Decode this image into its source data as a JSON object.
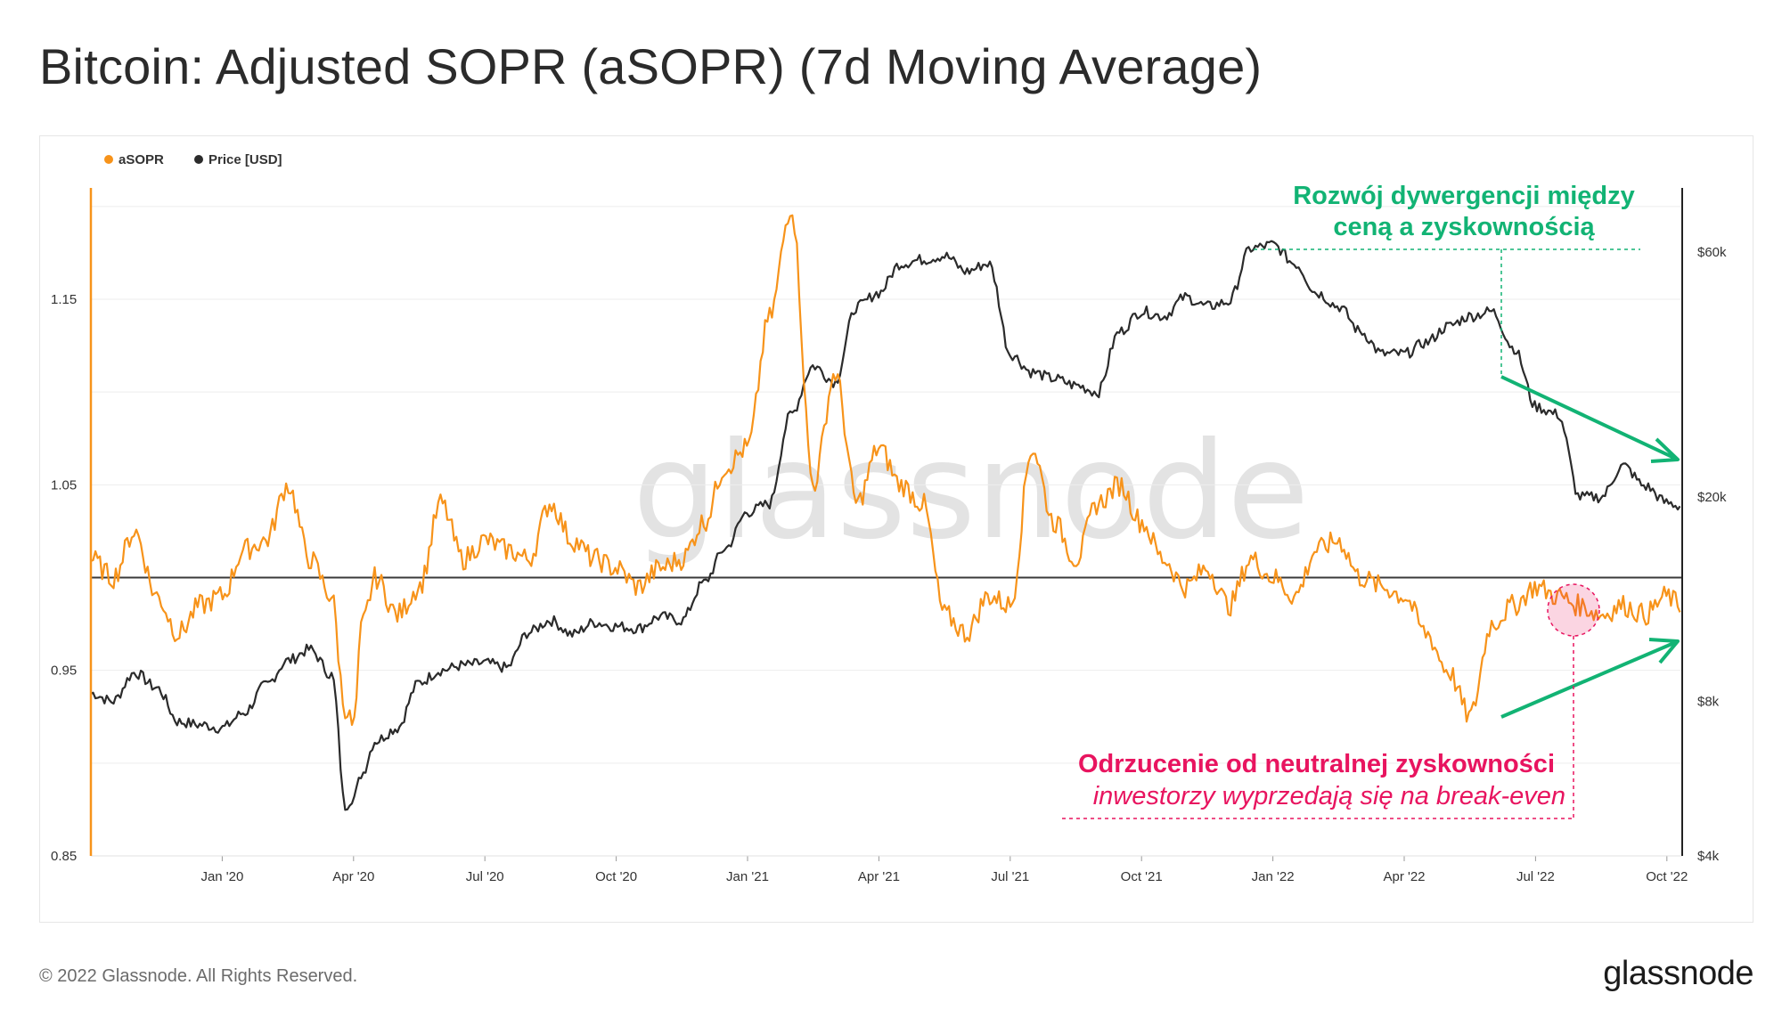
{
  "page": {
    "title": "Bitcoin: Adjusted SOPR (aSOPR) (7d Moving Average)",
    "copyright": "© 2022 Glassnode. All Rights Reserved.",
    "logo_text": "glassnode",
    "watermark": "glassnode"
  },
  "colors": {
    "asopr": "#f7931a",
    "price": "#2b2b2b",
    "green": "#12b374",
    "red": "#e8145f",
    "grid": "#ececec"
  },
  "chart_data": {
    "type": "line",
    "title": "Bitcoin: Adjusted SOPR (aSOPR) (7d Moving Average)",
    "legend": [
      {
        "name": "aSOPR",
        "color": "#f7931a"
      },
      {
        "name": "Price [USD]",
        "color": "#2b2b2b"
      }
    ],
    "x_ticks": [
      "Jan '20",
      "Apr '20",
      "Jul '20",
      "Oct '20",
      "Jan '21",
      "Apr '21",
      "Jul '21",
      "Oct '21",
      "Jan '22",
      "Apr '22",
      "Jul '22",
      "Oct '22"
    ],
    "x_range": [
      "2019-10-01",
      "2022-10-10"
    ],
    "y_left": {
      "label": "aSOPR",
      "range": [
        0.85,
        1.21
      ],
      "ticks": [
        "0.85",
        "0.95",
        "1.05",
        "1.15"
      ],
      "tick_values": [
        0.85,
        0.95,
        1.05,
        1.15
      ]
    },
    "y_right": {
      "label": "Price [USD]",
      "scale": "log",
      "range": [
        4000,
        80000
      ],
      "ticks": [
        "$4k",
        "$8k",
        "$20k",
        "$60k"
      ],
      "tick_values": [
        4000,
        8000,
        20000,
        60000
      ]
    },
    "reference_line": {
      "axis": "left",
      "value": 1.0
    },
    "series": [
      {
        "name": "aSOPR",
        "axis": "left",
        "x_month_index": [
          0,
          0.5,
          1,
          1.5,
          2,
          2.5,
          3,
          3.5,
          4,
          4.5,
          5,
          5.5,
          5.8,
          6,
          6.2,
          6.5,
          7,
          7.5,
          8,
          8.5,
          9,
          9.5,
          10,
          10.5,
          11,
          11.5,
          12,
          12.5,
          13,
          13.5,
          14,
          14.5,
          15,
          15.5,
          16,
          16.5,
          17,
          17.5,
          18,
          18.5,
          19,
          19.5,
          20,
          20.5,
          21,
          21.5,
          22,
          22.5,
          23,
          23.5,
          24,
          24.5,
          25,
          25.5,
          26,
          26.5,
          27,
          27.5,
          28,
          28.5,
          29,
          29.5,
          30,
          30.5,
          31,
          31.5,
          32,
          32.5,
          33,
          33.5,
          34,
          34.5,
          35,
          35.5,
          36,
          36.3
        ],
        "values": [
          1.01,
          1.0,
          1.025,
          0.99,
          0.97,
          0.985,
          0.99,
          1.015,
          1.02,
          1.05,
          1.01,
          0.99,
          0.93,
          0.92,
          0.975,
          1.0,
          0.98,
          0.995,
          1.04,
          1.01,
          1.02,
          1.015,
          1.01,
          1.04,
          1.02,
          1.01,
          1.005,
          0.995,
          1.005,
          1.01,
          1.03,
          1.06,
          1.07,
          1.14,
          1.2,
          1.05,
          1.11,
          1.04,
          1.07,
          1.05,
          1.04,
          0.98,
          0.97,
          0.99,
          0.985,
          1.07,
          1.03,
          1.01,
          1.04,
          1.05,
          1.03,
          1.01,
          0.995,
          1.005,
          0.985,
          1.01,
          1.0,
          0.99,
          1.015,
          1.02,
          1.0,
          0.995,
          0.99,
          0.97,
          0.95,
          0.925,
          0.975,
          0.985,
          0.995,
          0.99,
          0.985,
          0.98,
          0.985,
          0.98,
          0.99,
          0.985
        ]
      },
      {
        "name": "Price [USD]",
        "axis": "right",
        "x_month_index": [
          0,
          0.5,
          1,
          1.5,
          2,
          2.5,
          3,
          3.5,
          4,
          4.5,
          5,
          5.5,
          5.8,
          6,
          6.2,
          6.5,
          7,
          7.5,
          8,
          8.5,
          9,
          9.5,
          10,
          10.5,
          11,
          11.5,
          12,
          12.5,
          13,
          13.5,
          14,
          14.5,
          15,
          15.5,
          16,
          16.5,
          17,
          17.5,
          18,
          18.5,
          19,
          19.5,
          20,
          20.5,
          21,
          21.5,
          22,
          22.5,
          23,
          23.5,
          24,
          24.5,
          25,
          25.5,
          26,
          26.5,
          27,
          27.5,
          28,
          28.5,
          29,
          29.5,
          30,
          30.5,
          31,
          31.5,
          32,
          32.5,
          33,
          33.5,
          34,
          34.5,
          35,
          35.5,
          36,
          36.3
        ],
        "values": [
          8300,
          8000,
          9100,
          8500,
          7300,
          7200,
          7100,
          7600,
          8600,
          9600,
          10100,
          9000,
          5000,
          5200,
          5800,
          6700,
          7100,
          8700,
          9200,
          9400,
          9500,
          9300,
          10900,
          11500,
          10800,
          11400,
          11200,
          11100,
          11700,
          11500,
          13600,
          15900,
          18700,
          19400,
          29000,
          36000,
          33500,
          47000,
          50000,
          57000,
          58000,
          59000,
          55000,
          57000,
          38000,
          35000,
          34000,
          33000,
          32000,
          42000,
          46000,
          45000,
          49000,
          47000,
          48000,
          61000,
          62000,
          57000,
          50000,
          47000,
          42000,
          38000,
          38000,
          40000,
          43000,
          45000,
          46000,
          39000,
          30000,
          29000,
          20000,
          20000,
          23000,
          21000,
          19500,
          19200
        ]
      }
    ]
  },
  "annotations": {
    "divergence_line1": "Rozwój dywergencji między",
    "divergence_line2": "ceną a zyskownością",
    "rejection_title": "Odrzucenie od neutralnej zyskowności",
    "rejection_subtitle": "inwestorzy wyprzedają się na break-even"
  }
}
